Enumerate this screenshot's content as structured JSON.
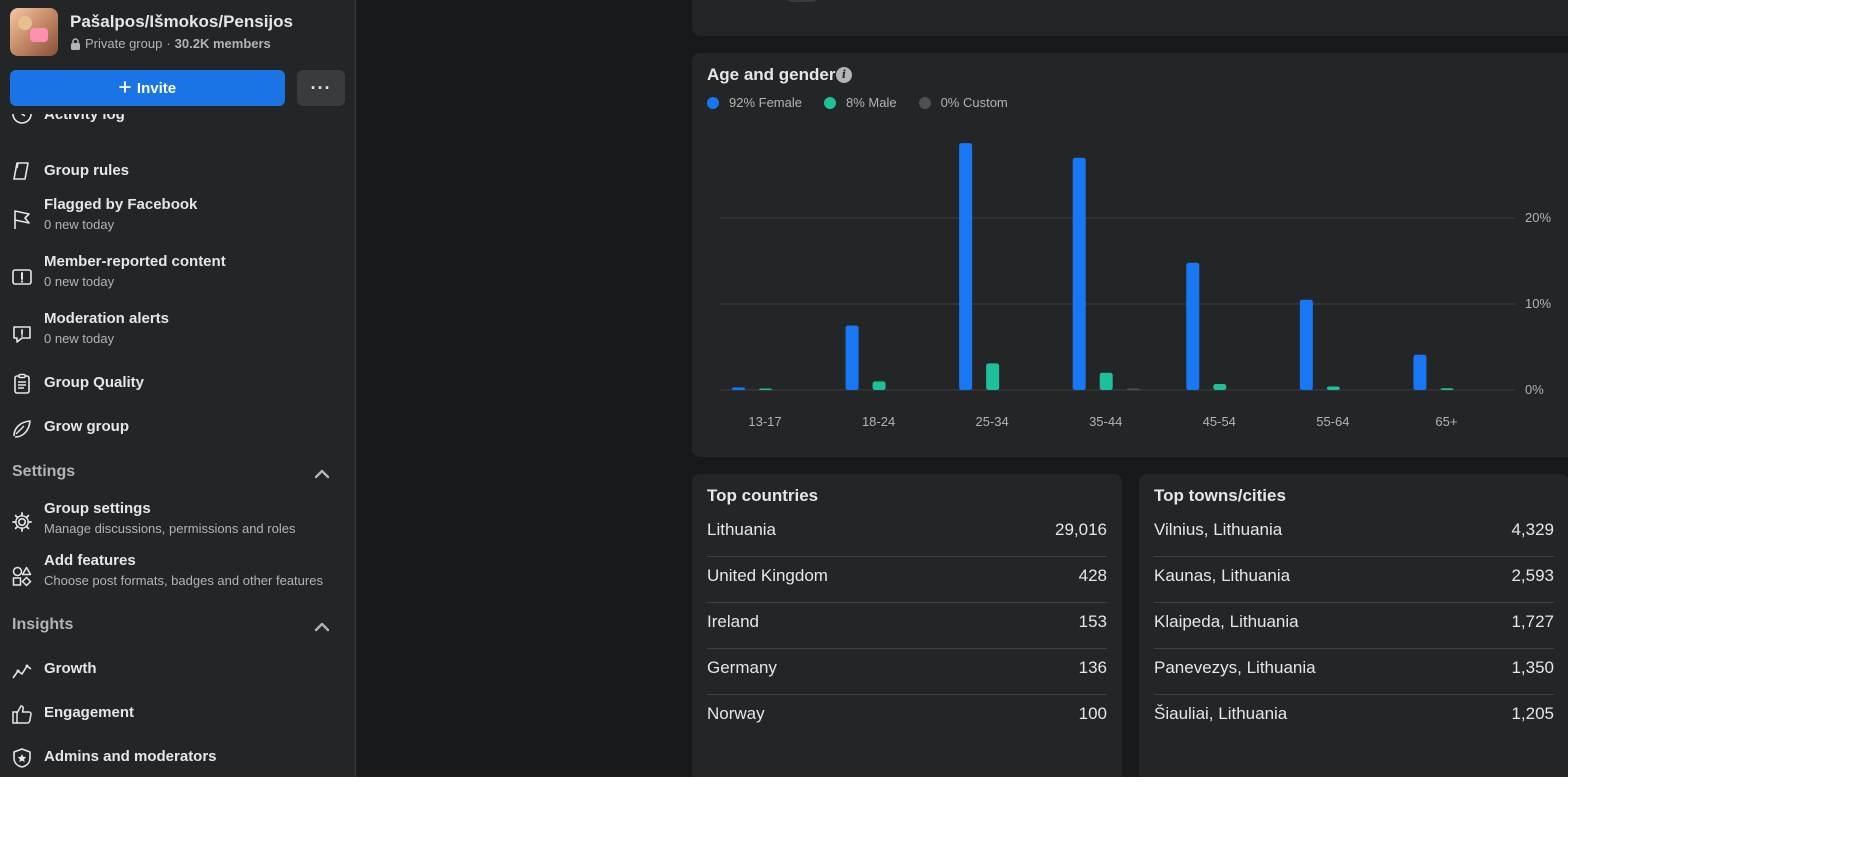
{
  "group": {
    "name": "Pašalpos/Išmokos/Pensijos",
    "privacy": "Private group",
    "separator": "·",
    "members": "30.2K members"
  },
  "actions": {
    "invite_label": "Invite",
    "more_label": "···"
  },
  "sidebar": {
    "items": [
      {
        "label": "Activity log",
        "sub": "",
        "icon": "clock-icon"
      },
      {
        "label": "Group rules",
        "sub": "",
        "icon": "rules-book-icon"
      },
      {
        "label": "Flagged by Facebook",
        "sub": "0 new today",
        "icon": "flag-icon"
      },
      {
        "label": "Member-reported content",
        "sub": "0 new today",
        "icon": "report-exclamation-icon"
      },
      {
        "label": "Moderation alerts",
        "sub": "0 new today",
        "icon": "alert-speech-icon"
      },
      {
        "label": "Group Quality",
        "sub": "",
        "icon": "clipboard-icon"
      },
      {
        "label": "Grow group",
        "sub": "",
        "icon": "growth-leaf-icon"
      }
    ],
    "settings": {
      "label": "Settings",
      "items": [
        {
          "label": "Group settings",
          "sub": "Manage discussions, permissions and roles",
          "icon": "gear-icon"
        },
        {
          "label": "Add features",
          "sub": "Choose post formats, badges and other features",
          "icon": "shapes-icon"
        }
      ]
    },
    "insights": {
      "label": "Insights",
      "items": [
        {
          "label": "Growth",
          "icon": "trend-line-icon"
        },
        {
          "label": "Engagement",
          "icon": "thumbs-up-icon"
        },
        {
          "label": "Admins and moderators",
          "icon": "shield-star-icon"
        }
      ]
    }
  },
  "age_gender": {
    "title": "Age and gender",
    "legend": [
      {
        "label": "92% Female",
        "color": "#1877f2"
      },
      {
        "label": "8% Male",
        "color": "#1fbf9a"
      },
      {
        "label": "0% Custom",
        "color": "#4e4f50"
      }
    ]
  },
  "chart_data": {
    "type": "bar",
    "categories": [
      "13-17",
      "18-24",
      "25-34",
      "35-44",
      "45-54",
      "55-64",
      "65+"
    ],
    "series": [
      {
        "name": "Female",
        "color": "#1877f2",
        "values": [
          0.3,
          7.5,
          28.7,
          27.0,
          14.8,
          10.5,
          4.1
        ]
      },
      {
        "name": "Male",
        "color": "#1fbf9a",
        "values": [
          0.1,
          1.0,
          3.1,
          2.0,
          0.7,
          0.4,
          0.2
        ]
      },
      {
        "name": "Custom",
        "color": "#4e4f50",
        "values": [
          0.0,
          0.0,
          0.0,
          0.05,
          0.0,
          0.0,
          0.0
        ]
      }
    ],
    "y_ticks": [
      "0%",
      "10%",
      "20%"
    ],
    "y_tick_values": [
      0,
      10,
      20
    ],
    "ylim": [
      0,
      30
    ],
    "grid": true,
    "y_axis_side": "right"
  },
  "top_countries": {
    "title": "Top countries",
    "rows": [
      {
        "name": "Lithuania",
        "value": "29,016"
      },
      {
        "name": "United Kingdom",
        "value": "428"
      },
      {
        "name": "Ireland",
        "value": "153"
      },
      {
        "name": "Germany",
        "value": "136"
      },
      {
        "name": "Norway",
        "value": "100"
      }
    ]
  },
  "top_towns": {
    "title": "Top towns/cities",
    "rows": [
      {
        "name": "Vilnius, Lithuania",
        "value": "4,329"
      },
      {
        "name": "Kaunas, Lithuania",
        "value": "2,593"
      },
      {
        "name": "Klaipeda, Lithuania",
        "value": "1,727"
      },
      {
        "name": "Panevezys, Lithuania",
        "value": "1,350"
      },
      {
        "name": "Šiauliai, Lithuania",
        "value": "1,205"
      }
    ]
  }
}
